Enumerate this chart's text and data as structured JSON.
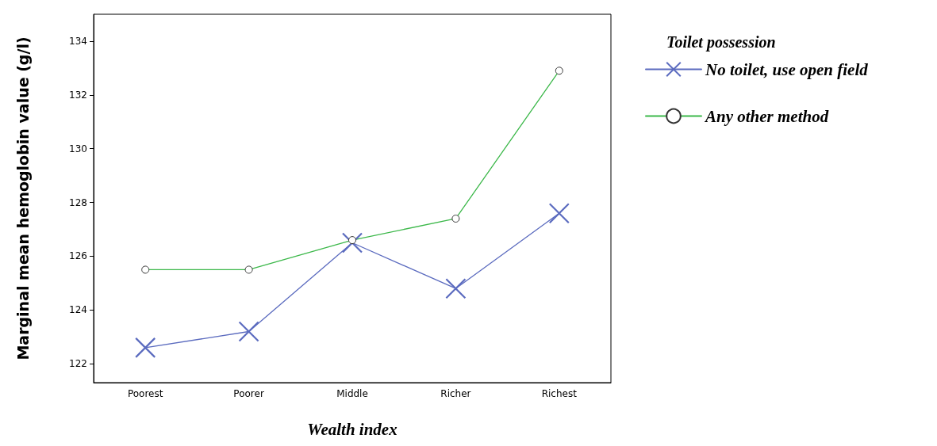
{
  "chart_data": {
    "type": "line",
    "xlabel": "Wealth index",
    "ylabel": "Marginal mean hemoglobin value (g/l)",
    "legend_title": "Toilet possession",
    "categories": [
      "Poorest",
      "Poorer",
      "Middle",
      "Richer",
      "Richest"
    ],
    "series": [
      {
        "name": "No toilet, use open field",
        "color": "#5b6bbf",
        "marker": "cross",
        "values": [
          122.6,
          123.2,
          126.5,
          124.8,
          127.6
        ]
      },
      {
        "name": "Any other method",
        "color": "#3cb84a",
        "marker": "circle",
        "values": [
          125.5,
          125.5,
          126.6,
          127.4,
          132.9
        ]
      }
    ],
    "ylim": [
      121.3,
      135
    ],
    "yticks": [
      122,
      124,
      126,
      128,
      130,
      132,
      134
    ],
    "grid": false,
    "legend": "top right",
    "line_style": "solid"
  }
}
